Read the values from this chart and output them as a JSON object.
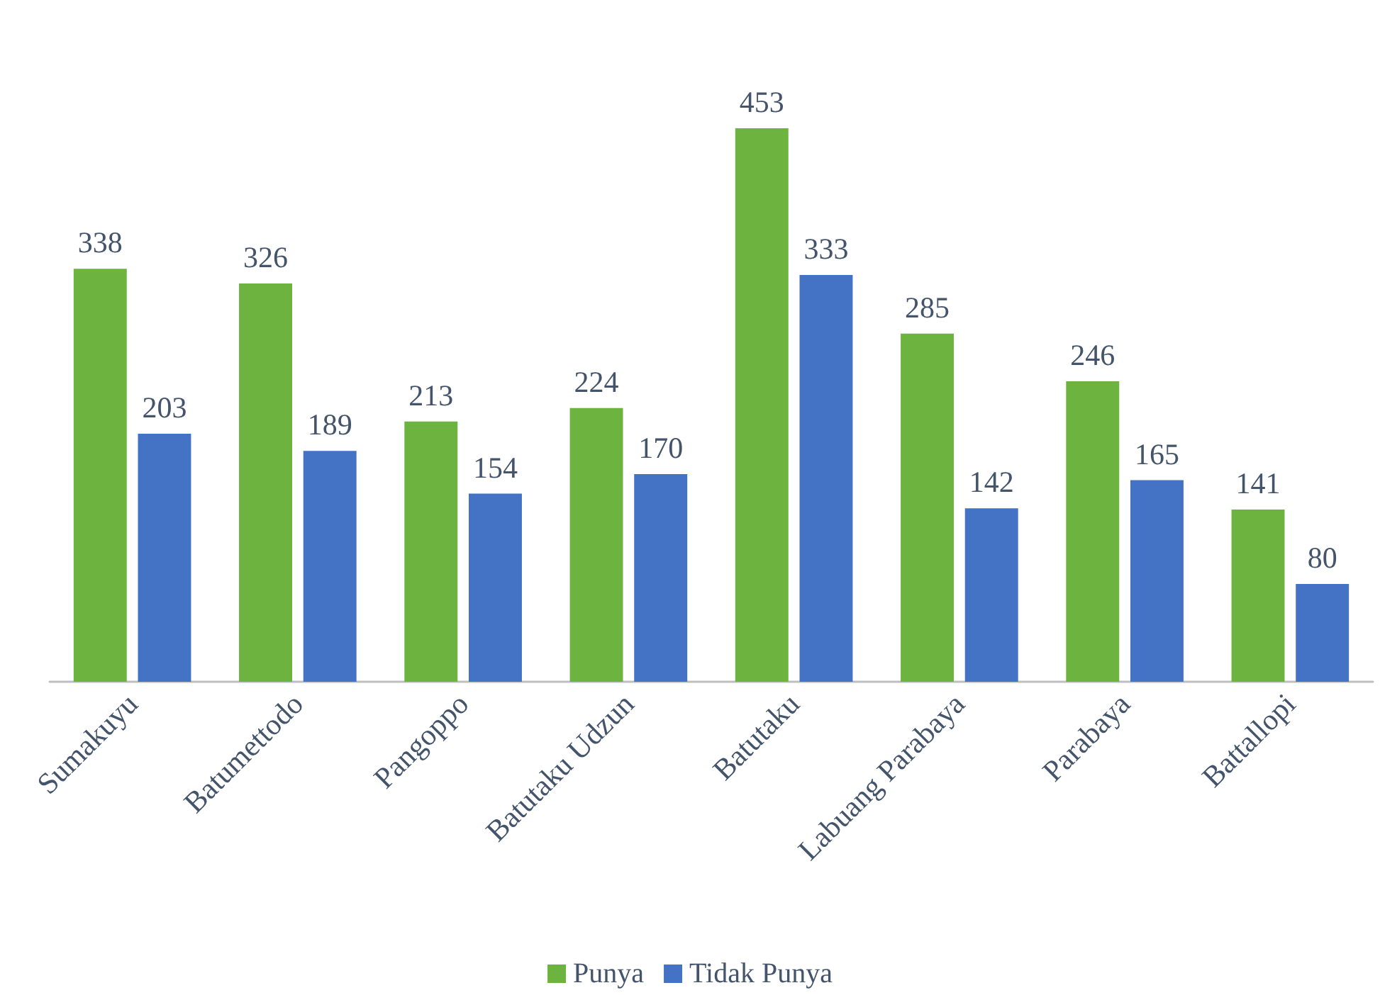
{
  "chart_data": {
    "type": "bar",
    "categories": [
      "Sumakuyu",
      "Batumettodo",
      "Pangoppo",
      "Batutaku Udzun",
      "Batutaku",
      "Labuang Parabaya",
      "Parabaya",
      "Battallopi"
    ],
    "series": [
      {
        "name": "Punya",
        "color": "#6db33f",
        "values": [
          338,
          326,
          213,
          224,
          453,
          285,
          246,
          141
        ]
      },
      {
        "name": "Tidak Punya",
        "color": "#4472c4",
        "values": [
          203,
          189,
          154,
          170,
          333,
          142,
          165,
          80
        ]
      }
    ],
    "data_labels": true,
    "legend": "bottom"
  }
}
